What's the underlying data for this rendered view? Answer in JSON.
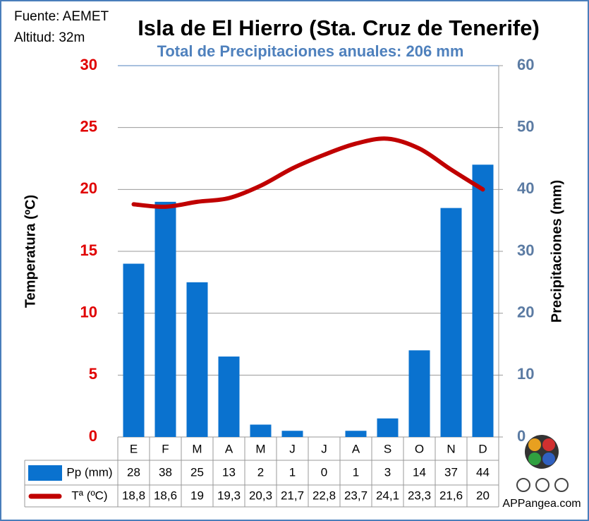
{
  "source": "Fuente: AEMET",
  "altitude": "Altitud: 32m",
  "credit": "APPangea.com",
  "chart_data": {
    "type": "climate",
    "title": "Isla de El Hierro (Sta. Cruz de Tenerife)",
    "subtitle": "Total de Precipitaciones anuales: 206 mm",
    "ylabel": "Temperatura (ºC)",
    "y2label": "Precipitaciones (mm)",
    "categories": [
      "E",
      "F",
      "M",
      "A",
      "M",
      "J",
      "J",
      "A",
      "S",
      "O",
      "N",
      "D"
    ],
    "ylim": [
      0,
      30
    ],
    "yticks": [
      0,
      5,
      10,
      15,
      20,
      25,
      30
    ],
    "y2lim": [
      0,
      60
    ],
    "y2ticks": [
      0,
      10,
      20,
      30,
      40,
      50,
      60
    ],
    "grid": true,
    "series": [
      {
        "name": "Pp (mm)",
        "type": "bar",
        "axis": "y2",
        "color": "#0a72cf",
        "values": [
          28,
          38,
          25,
          13,
          2,
          1,
          0,
          1,
          3,
          14,
          37,
          44
        ]
      },
      {
        "name": "Tª (ºC)",
        "type": "line",
        "axis": "y",
        "color": "#c00000",
        "values": [
          18.8,
          18.6,
          19,
          19.3,
          20.3,
          21.7,
          22.8,
          23.7,
          24.1,
          23.3,
          21.6,
          20
        ],
        "value_labels": [
          "18,8",
          "18,6",
          "19",
          "19,3",
          "20,3",
          "21,7",
          "22,8",
          "23,7",
          "24,1",
          "23,3",
          "21,6",
          "20"
        ]
      }
    ]
  }
}
